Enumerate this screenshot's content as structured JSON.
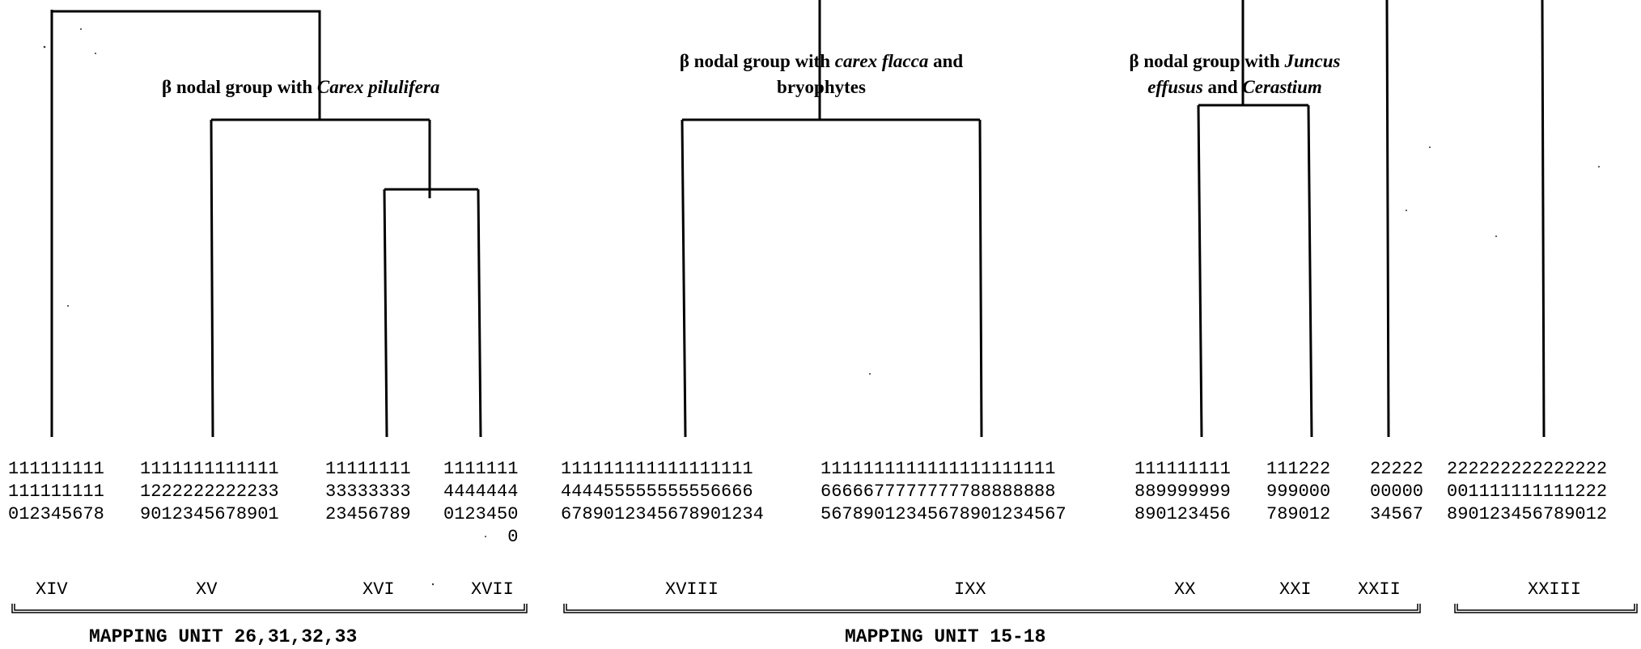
{
  "group_labels": [
    {
      "line1_prefix": "β nodal group with ",
      "line1_species": "Carex pilulifera",
      "line1_suffix": "",
      "line2_species": "",
      "line2_suffix": ""
    },
    {
      "line1_prefix": "β nodal group with ",
      "line1_species": "carex flacca",
      "line1_suffix": " and",
      "line2_text": "bryophytes"
    },
    {
      "line1_prefix": "β nodal group with ",
      "line1_species": "Juncus",
      "line2_species_a": "effusus",
      "line2_mid": " and ",
      "line2_species_b": "Cerastium"
    }
  ],
  "digit_columns": [
    {
      "rows": [
        "111111111",
        "111111111",
        "012345678"
      ]
    },
    {
      "rows": [
        "1111111111111",
        "1222222222233",
        "9012345678901"
      ]
    },
    {
      "rows": [
        "11111111",
        "33333333",
        "23456789"
      ]
    },
    {
      "rows": [
        "1111111",
        "4444444",
        "0123450",
        "      0"
      ]
    },
    {
      "rows": [
        "111111111111111111",
        "444455555555556666",
        "678901234567890 1234"
      ]
    },
    {
      "rows": [
        "1111111111111111111111",
        "6666677777777788888888",
        "5678901234567890 1234567"
      ]
    },
    {
      "rows": [
        "111111111",
        "889999999",
        "890123456"
      ]
    },
    {
      "rows": [
        "111222",
        "999000",
        "789012"
      ]
    },
    {
      "rows": [
        "22222",
        "00000",
        "34567"
      ]
    },
    {
      "rows": [
        "222222222222222",
        "001111111111222",
        "890123456789012"
      ]
    }
  ],
  "roman_numerals": [
    "XIV",
    "XV",
    "XVI",
    "XVII",
    "XVIII",
    "IXX",
    "XX",
    "XXI",
    "XXII",
    "XXIII"
  ],
  "mapping_units": [
    "MAPPING UNIT 26,31,32,33",
    "MAPPING UNIT 15-18"
  ]
}
